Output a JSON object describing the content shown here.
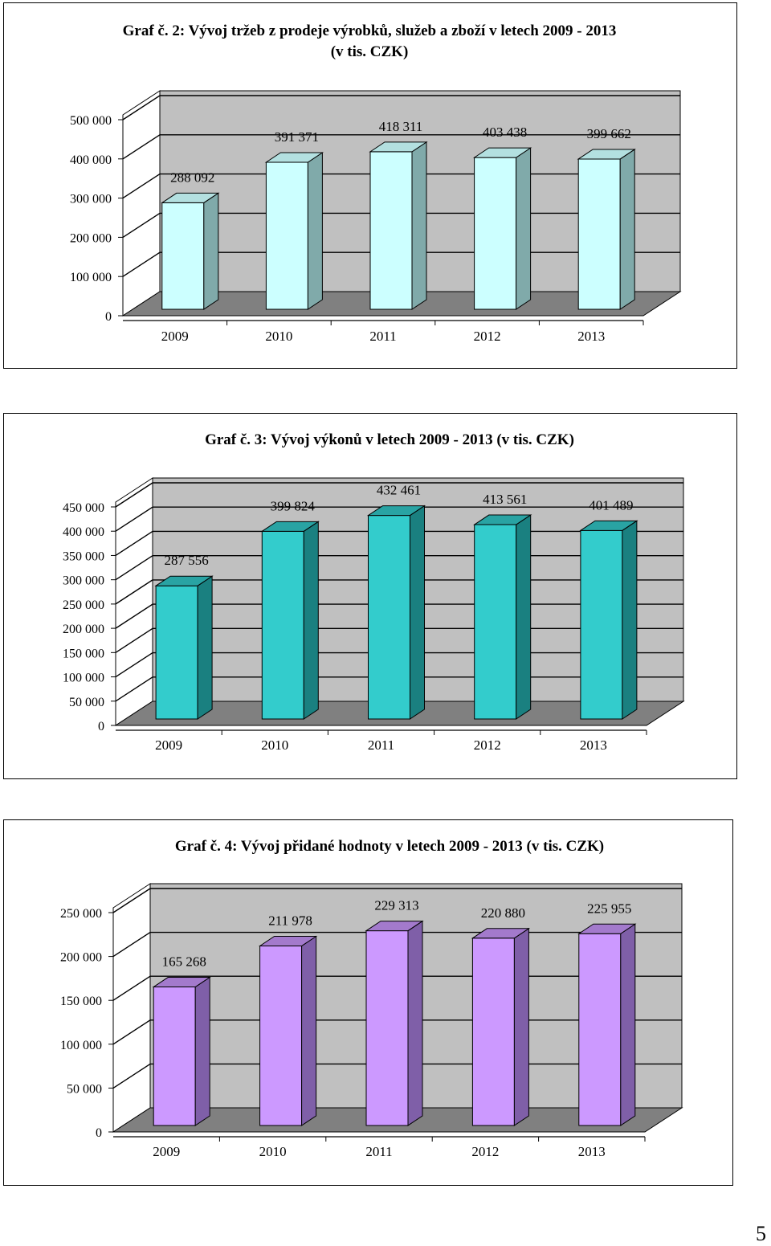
{
  "page_number": "5",
  "chart_data": [
    {
      "type": "bar",
      "title": "Graf  č. 2: Vývoj  tržeb  z prodeje  výrobků,  služeb a zboží  v  letech 2009 - 2013",
      "title_line2": "(v  tis. CZK)",
      "categories": [
        "2009",
        "2010",
        "2011",
        "2012",
        "2013"
      ],
      "values": [
        288092,
        391371,
        418311,
        403438,
        399662
      ],
      "value_labels": [
        "288 092",
        "391 371",
        "418 311",
        "403 438",
        "399 662"
      ],
      "yticks": [
        "0",
        "100 000",
        "200 000",
        "300 000",
        "400 000",
        "500 000"
      ],
      "ylim": [
        0,
        500000
      ],
      "grid": true,
      "style": "3d-column",
      "colors": {
        "front": "#ccffff",
        "side": "#80aaaa",
        "top": "#b3e0e0"
      }
    },
    {
      "type": "bar",
      "title": "Graf  č. 3: Vývoj  výkonů  v  letech 2009 - 2013 (v  tis. CZK)",
      "title_line2": "",
      "categories": [
        "2009",
        "2010",
        "2011",
        "2012",
        "2013"
      ],
      "values": [
        287556,
        399824,
        432461,
        413561,
        401489
      ],
      "value_labels": [
        "287 556",
        "399 824",
        "432 461",
        "413 561",
        "401 489"
      ],
      "yticks": [
        "0",
        "50 000",
        "100 000",
        "150 000",
        "200 000",
        "250 000",
        "300 000",
        "350 000",
        "400 000",
        "450 000"
      ],
      "ylim": [
        0,
        450000
      ],
      "grid": true,
      "style": "3d-column",
      "colors": {
        "front": "#33cccc",
        "side": "#1a8080",
        "top": "#29a3a3"
      }
    },
    {
      "type": "bar",
      "title": "Graf  č. 4: Vývoj  přidané  hodnoty  v  letech 2009 - 2013  (v  tis. CZK)",
      "title_line2": "",
      "categories": [
        "2009",
        "2010",
        "2011",
        "2012",
        "2013"
      ],
      "values": [
        165268,
        211978,
        229313,
        220880,
        225955
      ],
      "value_labels": [
        "165 268",
        "211 978",
        "229 313",
        "220 880",
        "225 955"
      ],
      "yticks": [
        "0",
        "50 000",
        "100 000",
        "150 000",
        "200 000",
        "250 000"
      ],
      "ylim": [
        0,
        250000
      ],
      "grid": true,
      "style": "3d-column",
      "colors": {
        "front": "#cc99ff",
        "side": "#7f5fa8",
        "top": "#a37acc"
      }
    }
  ]
}
